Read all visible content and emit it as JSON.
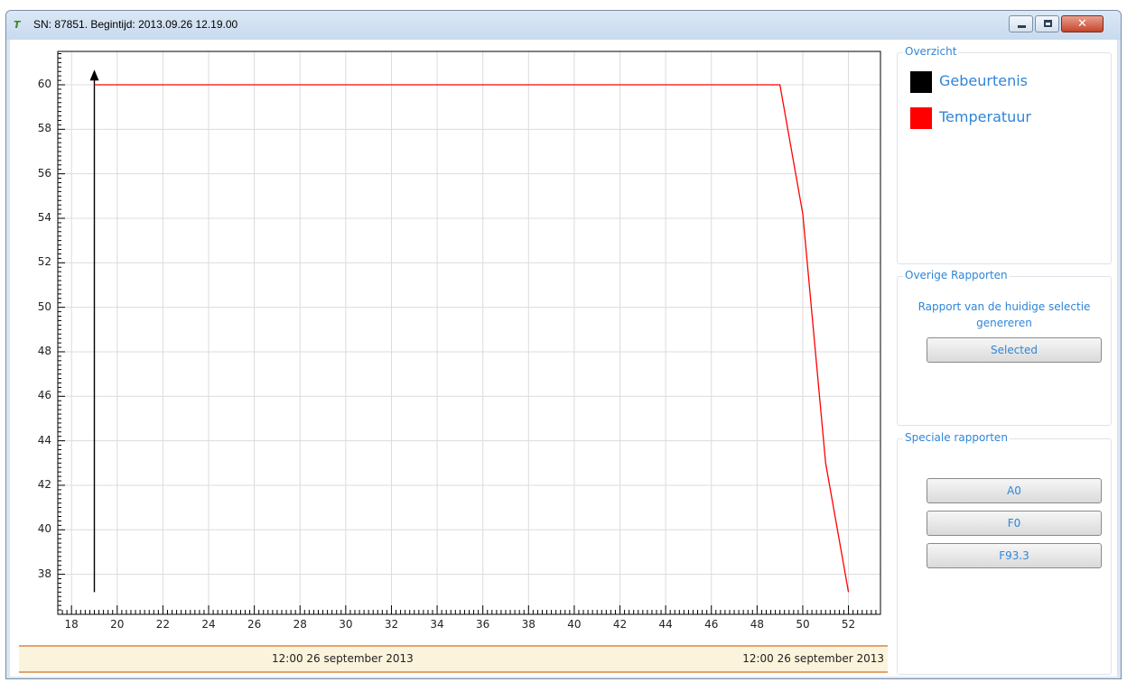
{
  "window": {
    "title": "SN: 87851. Begintijd: 2013.09.26 12.19.00",
    "icon_text": "T",
    "controls": {
      "minimize": "minimize-icon",
      "maximize": "maximize-icon",
      "close": "✕"
    }
  },
  "overzicht": {
    "title": "Overzicht",
    "legend": [
      {
        "label": "Gebeurtenis",
        "color": "#000000"
      },
      {
        "label": "Temperatuur",
        "color": "#ff0000"
      }
    ]
  },
  "overige_rapporten": {
    "title": "Overige Rapporten",
    "description": "Rapport van de huidige selectie genereren",
    "button": "Selected"
  },
  "speciale_rapporten": {
    "title": "Speciale rapporten",
    "buttons": [
      "A0",
      "F0",
      "F93.3"
    ]
  },
  "timebar": {
    "left": "12:00 26 september 2013",
    "right": "12:00 26 september 2013"
  },
  "chart_data": {
    "type": "line",
    "xlim": [
      17.4,
      53.4
    ],
    "ylim": [
      36.2,
      61.5
    ],
    "x_ticks": [
      18,
      20,
      22,
      24,
      26,
      28,
      30,
      32,
      34,
      36,
      38,
      40,
      42,
      44,
      46,
      48,
      50,
      52
    ],
    "y_ticks": [
      38,
      40,
      42,
      44,
      46,
      48,
      50,
      52,
      54,
      56,
      58,
      60
    ],
    "grid": true,
    "series": [
      {
        "name": "Temperatuur",
        "color": "#ff0000",
        "x": [
          19,
          49,
          50,
          51,
          52
        ],
        "y": [
          60,
          60,
          54.2,
          43,
          37.2
        ]
      }
    ],
    "events": [
      {
        "name": "Gebeurtenis",
        "color": "#000000",
        "x": 19,
        "y_from": 37.2,
        "y_to": 60.6
      }
    ]
  }
}
